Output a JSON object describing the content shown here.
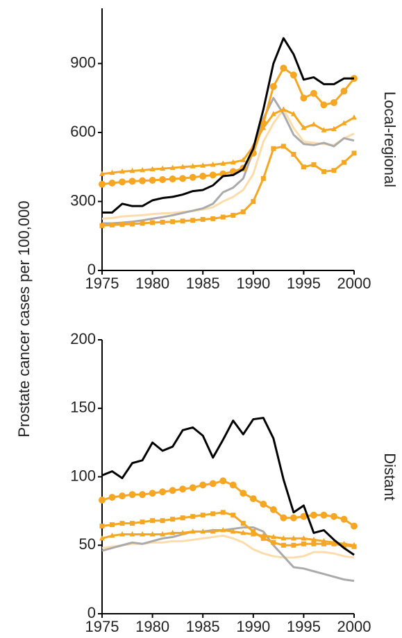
{
  "ylabel": "Prostate cancer cases per 100,000",
  "chart_data": [
    {
      "type": "line",
      "panel_label": "Local-regional",
      "x": [
        1975,
        1976,
        1977,
        1978,
        1979,
        1980,
        1981,
        1982,
        1983,
        1984,
        1985,
        1986,
        1987,
        1988,
        1989,
        1990,
        1991,
        1992,
        1993,
        1994,
        1995,
        1996,
        1997,
        1998,
        1999,
        2000
      ],
      "xlim": [
        1975,
        2000
      ],
      "xticks": [
        1975,
        1980,
        1985,
        1990,
        1995,
        2000
      ],
      "ylim": [
        0,
        1140
      ],
      "yticks": [
        0,
        300,
        600,
        900
      ],
      "series": [
        {
          "color": "#fcdcaa",
          "marker": null,
          "values": [
            225,
            228,
            235,
            238,
            240,
            245,
            248,
            250,
            255,
            258,
            265,
            275,
            300,
            320,
            350,
            420,
            560,
            640,
            700,
            620,
            560,
            555,
            550,
            545,
            575,
            595
          ]
        },
        {
          "color": "#aaaaaa",
          "marker": null,
          "values": [
            205,
            205,
            208,
            212,
            218,
            225,
            232,
            240,
            250,
            260,
            270,
            290,
            340,
            360,
            400,
            520,
            660,
            750,
            680,
            590,
            550,
            545,
            555,
            540,
            575,
            565
          ]
        },
        {
          "color": "#f5a623",
          "marker": "square",
          "values": [
            195,
            198,
            200,
            202,
            205,
            208,
            210,
            212,
            215,
            218,
            222,
            225,
            232,
            240,
            255,
            300,
            400,
            530,
            540,
            505,
            450,
            460,
            430,
            435,
            470,
            510
          ]
        },
        {
          "color": "#f5a623",
          "marker": "triangle",
          "values": [
            420,
            425,
            430,
            433,
            436,
            440,
            443,
            446,
            450,
            453,
            456,
            460,
            465,
            470,
            480,
            540,
            620,
            680,
            700,
            680,
            620,
            635,
            610,
            615,
            640,
            665
          ]
        },
        {
          "color": "#f5a623",
          "marker": "circle",
          "values": [
            375,
            380,
            385,
            388,
            390,
            392,
            395,
            398,
            400,
            405,
            410,
            415,
            420,
            430,
            445,
            510,
            640,
            800,
            880,
            850,
            750,
            770,
            720,
            730,
            780,
            835
          ]
        },
        {
          "color": "#000000",
          "marker": null,
          "values": [
            252,
            252,
            290,
            280,
            280,
            305,
            315,
            320,
            330,
            345,
            350,
            370,
            410,
            415,
            440,
            530,
            700,
            900,
            1010,
            940,
            830,
            840,
            810,
            810,
            835,
            835
          ]
        }
      ]
    },
    {
      "type": "line",
      "panel_label": "Distant",
      "x": [
        1975,
        1976,
        1977,
        1978,
        1979,
        1980,
        1981,
        1982,
        1983,
        1984,
        1985,
        1986,
        1987,
        1988,
        1989,
        1990,
        1991,
        1992,
        1993,
        1994,
        1995,
        1996,
        1997,
        1998,
        1999,
        2000
      ],
      "xlim": [
        1975,
        2000
      ],
      "xticks": [
        1975,
        1980,
        1985,
        1990,
        1995,
        2000
      ],
      "ylim": [
        0,
        200
      ],
      "yticks": [
        0,
        50,
        100,
        150,
        200
      ],
      "series": [
        {
          "color": "#fcdcaa",
          "marker": null,
          "values": [
            48,
            49,
            50,
            51,
            51,
            52,
            52,
            53,
            53,
            54,
            55,
            56,
            57,
            55,
            52,
            47,
            44,
            42,
            41,
            41,
            42,
            45,
            45,
            44,
            42,
            41
          ]
        },
        {
          "color": "#aaaaaa",
          "marker": null,
          "values": [
            46,
            48,
            50,
            52,
            51,
            53,
            55,
            56,
            58,
            60,
            60,
            61,
            61,
            62,
            63,
            63,
            60,
            50,
            42,
            34,
            33,
            31,
            29,
            27,
            25,
            24
          ]
        },
        {
          "color": "#f5a623",
          "marker": "square",
          "values": [
            64,
            65,
            66,
            66,
            67,
            68,
            68,
            69,
            70,
            71,
            72,
            73,
            74,
            72,
            66,
            60,
            55,
            52,
            50,
            50,
            51,
            51,
            51,
            51,
            50,
            49
          ]
        },
        {
          "color": "#f5a623",
          "marker": "triangle",
          "values": [
            55,
            57,
            58,
            58,
            58,
            58,
            58,
            59,
            59,
            60,
            60,
            60,
            61,
            60,
            59,
            58,
            57,
            56,
            55,
            55,
            55,
            54,
            53,
            52,
            51,
            50
          ]
        },
        {
          "color": "#f5a623",
          "marker": "circle",
          "values": [
            83,
            85,
            86,
            87,
            87,
            88,
            89,
            90,
            91,
            92,
            94,
            95,
            97,
            94,
            88,
            84,
            80,
            76,
            70,
            70,
            71,
            72,
            72,
            71,
            69,
            64
          ]
        },
        {
          "color": "#000000",
          "marker": null,
          "values": [
            101,
            104,
            99,
            110,
            112,
            125,
            119,
            122,
            134,
            136,
            130,
            114,
            127,
            141,
            131,
            142,
            143,
            128,
            98,
            74,
            79,
            59,
            61,
            54,
            48,
            43
          ]
        }
      ]
    }
  ]
}
